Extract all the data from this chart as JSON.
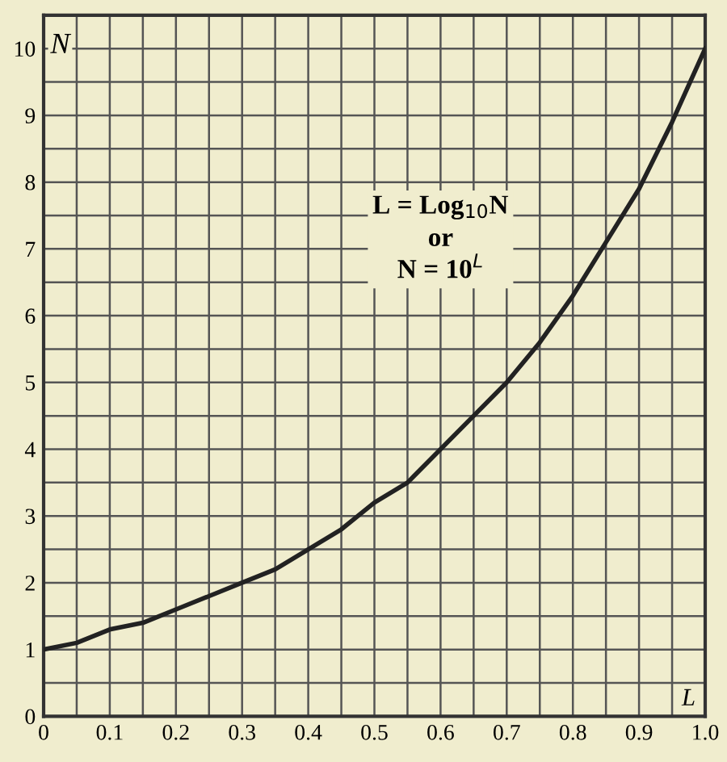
{
  "chart_data": {
    "type": "line",
    "xlabel": "L",
    "ylabel": "N",
    "annotations": [
      "L = Log$_{10}$N\nor\nN = 10$^{L}$"
    ],
    "x": [
      0,
      0.05,
      0.1,
      0.15,
      0.2,
      0.25,
      0.3,
      0.35,
      0.4,
      0.45,
      0.5,
      0.55,
      0.6,
      0.65,
      0.7,
      0.75,
      0.8,
      0.85,
      0.9,
      0.95,
      1.0
    ],
    "series": [
      {
        "color": "#222222",
        "values": [
          1.0,
          1.1,
          1.3,
          1.4,
          1.6,
          1.8,
          2.0,
          2.2,
          2.5,
          2.8,
          3.2,
          3.5,
          4.0,
          4.5,
          5.0,
          5.6,
          6.3,
          7.1,
          7.9,
          8.9,
          10.0
        ]
      }
    ],
    "xlim": [
      0,
      1
    ],
    "ylim": [
      0,
      10.5
    ],
    "xticks": [
      0,
      {
        "value": 0.05,
        "label": null
      },
      0.1,
      {
        "value": 0.15,
        "label": null
      },
      0.2,
      {
        "value": 0.25,
        "label": null
      },
      0.3,
      {
        "value": 0.35,
        "label": null
      },
      0.4,
      {
        "value": 0.45,
        "label": null
      },
      0.5,
      {
        "value": 0.55,
        "label": null
      },
      0.6,
      {
        "value": 0.65,
        "label": null
      },
      0.7,
      {
        "value": 0.75,
        "label": null
      },
      0.8,
      {
        "value": 0.85,
        "label": null
      },
      0.9,
      {
        "value": 0.95,
        "label": null
      },
      {
        "value": 1,
        "label": "1.0"
      }
    ],
    "yticks": [
      0,
      {
        "value": 0.5,
        "label": null
      },
      1,
      {
        "value": 1.5,
        "label": null
      },
      2,
      {
        "value": 2.5,
        "label": null
      },
      3,
      {
        "value": 3.5,
        "label": null
      },
      4,
      {
        "value": 4.5,
        "label": null
      },
      5,
      {
        "value": 5.5,
        "label": null
      },
      6,
      {
        "value": 6.5,
        "label": null
      },
      7,
      {
        "value": 7.5,
        "label": null
      },
      8,
      {
        "value": 8.5,
        "label": null
      },
      9,
      {
        "value": 9.5,
        "label": null
      },
      10
    ],
    "grid": true,
    "line_style": "solid",
    "marker": "none"
  }
}
